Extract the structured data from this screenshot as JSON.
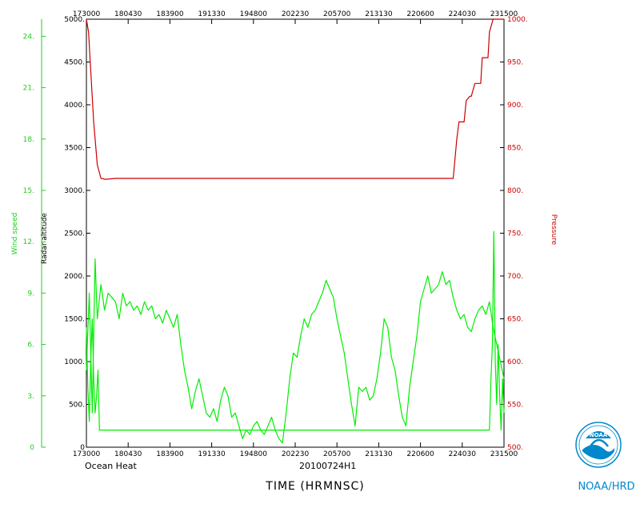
{
  "chart_data": {
    "type": "line",
    "footer_left": "Ocean Heat",
    "footer_center": "20100724H1",
    "xlabel": "TIME (HRMNSC)",
    "y_left_inner_label": "Radar altitude",
    "y_left_outer_label": "Wind speed",
    "y_right_label": "Pressure",
    "x_tick_labels": [
      "173000",
      "180430",
      "183900",
      "191330",
      "194800",
      "202230",
      "205700",
      "213130",
      "220600",
      "224030",
      "231500"
    ],
    "x_range": [
      "173000",
      "231500"
    ],
    "altitude_ticks": [
      0,
      500,
      1000,
      1500,
      2000,
      2500,
      3000,
      3500,
      4000,
      4500,
      5000
    ],
    "altitude_tick_labels": [
      "0",
      "500.",
      "1000.",
      "1500.",
      "2000.",
      "2500.",
      "3000.",
      "3500.",
      "4000.",
      "4500.",
      "5000."
    ],
    "altitude_range": [
      0,
      5000
    ],
    "wind_ticks": [
      0,
      3,
      6,
      9,
      12,
      15,
      18,
      21,
      24
    ],
    "wind_tick_labels": [
      "0",
      "3.",
      "6.",
      "9.",
      "12.",
      "15.",
      "18.",
      "21.",
      "24."
    ],
    "wind_range": [
      0,
      25
    ],
    "pressure_ticks": [
      500,
      550,
      600,
      650,
      700,
      750,
      800,
      850,
      900,
      950,
      1000
    ],
    "pressure_tick_labels": [
      "500.",
      "550.",
      "600.",
      "650.",
      "700.",
      "750.",
      "800.",
      "850.",
      "900.",
      "950.",
      "1000."
    ],
    "pressure_range": [
      500,
      1000
    ],
    "series": [
      {
        "name": "Pressure",
        "color": "#cc0000",
        "x_hours": [
          17.5,
          17.53,
          17.56,
          17.6,
          17.65,
          17.7,
          17.76,
          17.9,
          18.3,
          18.9,
          19.5,
          20.0,
          21.0,
          22.0,
          22.55,
          22.6,
          22.63,
          22.7,
          22.73,
          22.78,
          22.8,
          22.85,
          22.87,
          22.93,
          22.95,
          23.03,
          23.05,
          23.1,
          23.15,
          23.25
        ],
        "values": [
          1000,
          985,
          940,
          880,
          830,
          814,
          813,
          814,
          814,
          814,
          814,
          814,
          814,
          814,
          814,
          860,
          880,
          880,
          905,
          910,
          910,
          925,
          925,
          925,
          955,
          955,
          985,
          1000,
          1000,
          1000
        ]
      },
      {
        "name": "Radar altitude",
        "color": "#00ee00",
        "x_hours": [
          17.5,
          17.54,
          17.58,
          17.62,
          17.65,
          17.7,
          17.75,
          17.8,
          17.85,
          17.9,
          17.95,
          18.0,
          18.05,
          18.1,
          18.15,
          18.2,
          18.25,
          18.3,
          18.35,
          18.4,
          18.45,
          18.5,
          18.55,
          18.6,
          18.65,
          18.7,
          18.75,
          18.8,
          18.85,
          18.9,
          18.95,
          19.0,
          19.05,
          19.1,
          19.15,
          19.2,
          19.25,
          19.3,
          19.35,
          19.4,
          19.45,
          19.5,
          19.55,
          19.6,
          19.65,
          19.7,
          19.75,
          19.8,
          19.85,
          19.9,
          19.95,
          20.0,
          20.05,
          20.1,
          20.15,
          20.2,
          20.25,
          20.3,
          20.35,
          20.4,
          20.45,
          20.5,
          20.55,
          20.6,
          20.65,
          20.7,
          20.75,
          20.8,
          20.85,
          20.9,
          20.95,
          21.0,
          21.05,
          21.1,
          21.15,
          21.2,
          21.25,
          21.3,
          21.35,
          21.4,
          21.45,
          21.5,
          21.55,
          21.6,
          21.65,
          21.7,
          21.75,
          21.8,
          21.85,
          21.9,
          21.95,
          22.0,
          22.05,
          22.1,
          22.15,
          22.2,
          22.25,
          22.3,
          22.35,
          22.4,
          22.45,
          22.5,
          22.55,
          22.6,
          22.65,
          22.7,
          22.75,
          22.8,
          22.85,
          22.9,
          22.95,
          23.0,
          23.05,
          23.1,
          23.15,
          23.2,
          23.25
        ],
        "values": [
          900,
          1800,
          400,
          2200,
          1500,
          1900,
          1600,
          1800,
          1750,
          1700,
          1500,
          1800,
          1650,
          1700,
          1600,
          1650,
          1550,
          1700,
          1600,
          1650,
          1500,
          1550,
          1450,
          1600,
          1500,
          1400,
          1550,
          1200,
          900,
          700,
          450,
          650,
          800,
          600,
          400,
          350,
          450,
          300,
          550,
          700,
          600,
          350,
          400,
          250,
          100,
          200,
          150,
          250,
          300,
          200,
          150,
          250,
          350,
          200,
          100,
          50,
          400,
          800,
          1100,
          1050,
          1300,
          1500,
          1400,
          1550,
          1600,
          1700,
          1800,
          1950,
          1850,
          1750,
          1500,
          1300,
          1100,
          800,
          500,
          250,
          700,
          650,
          700,
          550,
          600,
          800,
          1100,
          1500,
          1400,
          1050,
          900,
          600,
          350,
          250,
          700,
          1000,
          1300,
          1700,
          1850,
          2000,
          1800,
          1850,
          1900,
          2050,
          1900,
          1950,
          1750,
          1600,
          1500,
          1550,
          1400,
          1350,
          1500,
          1600,
          1650,
          1550,
          1700,
          1400,
          1200,
          1000,
          800
        ]
      },
      {
        "name": "Wind speed",
        "color": "#00ee00",
        "x_hours": [
          17.5,
          17.52,
          17.54,
          17.56,
          17.58,
          17.6,
          17.62,
          17.64,
          17.66,
          17.68,
          23.05,
          23.07,
          23.09,
          23.11,
          23.13,
          23.15,
          23.17,
          23.19,
          23.21,
          23.23,
          23.25
        ],
        "values": [
          7,
          3.5,
          1.5,
          5,
          7.5,
          4,
          2,
          3,
          4.5,
          1,
          1,
          4,
          6,
          12.6,
          5,
          2.5,
          6,
          3,
          1,
          4,
          2
        ]
      }
    ]
  },
  "logo": {
    "text": "NOAA/HRD",
    "emblem_text": "NOAA"
  }
}
